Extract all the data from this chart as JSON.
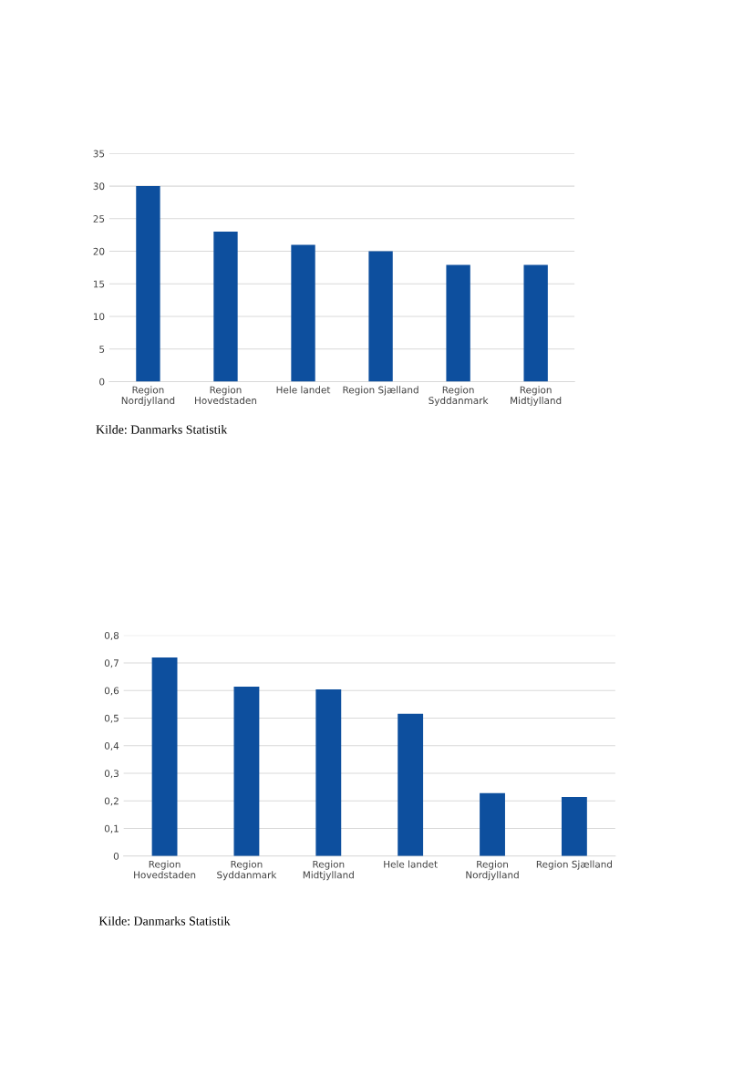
{
  "chart_data": [
    {
      "type": "bar",
      "categories": [
        "Region\nNordjylland",
        "Region\nHovedstaden",
        "Hele landet",
        "Region Sjælland",
        "Region\nSyddanmark",
        "Region\nMidtjylland"
      ],
      "values": [
        30,
        23,
        21,
        20,
        17.9,
        17.9
      ],
      "color": "#0d4f9e",
      "ylim": [
        0,
        35
      ],
      "yticks": [
        0,
        5,
        10,
        15,
        20,
        25,
        30,
        35
      ],
      "grid": "y",
      "annotations": [
        "Kilde: Danmarks Statistik"
      ]
    },
    {
      "type": "bar",
      "categories": [
        "Region\nHovedstaden",
        "Region\nSyddanmark",
        "Region\nMidtjylland",
        "Hele landet",
        "Region\nNordjylland",
        "Region Sjælland"
      ],
      "values": [
        0.72,
        0.614,
        0.604,
        0.516,
        0.228,
        0.214
      ],
      "color": "#0d4f9e",
      "ylim": [
        0,
        0.8
      ],
      "yticks": [
        0,
        {
          "value": 0.1,
          "label": "0,1"
        },
        {
          "value": 0.2,
          "label": "0,2"
        },
        {
          "value": 0.3,
          "label": "0,3"
        },
        {
          "value": 0.4,
          "label": "0,4"
        },
        {
          "value": 0.5,
          "label": "0,5"
        },
        {
          "value": 0.6,
          "label": "0,6"
        },
        {
          "value": 0.7,
          "label": "0,7"
        },
        {
          "value": 0.8,
          "label": "0,8"
        }
      ],
      "grid": "y",
      "annotations": [
        "Kilde: Danmarks Statistik"
      ]
    }
  ]
}
